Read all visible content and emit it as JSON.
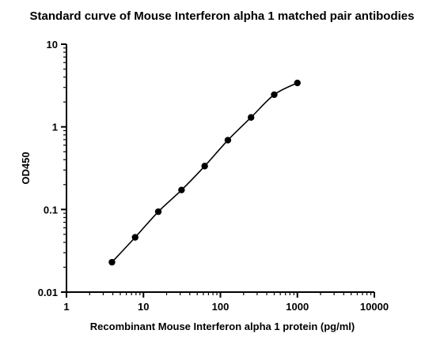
{
  "chart_data": {
    "type": "scatter",
    "title": "Standard curve of Mouse Interferon alpha 1 matched pair antibodies",
    "xlabel": "Recombinant Mouse Interferon alpha 1 protein (pg/ml)",
    "ylabel": "OD450",
    "xscale": "log",
    "yscale": "log",
    "xlim": [
      1,
      10000
    ],
    "ylim": [
      0.01,
      10
    ],
    "xticks": [
      "1",
      "10",
      "100",
      "1000",
      "10000"
    ],
    "yticks": [
      "0.01",
      "0.1",
      "1",
      "10"
    ],
    "grid": false,
    "legend": "none",
    "fit_line": true,
    "x": [
      3.9,
      7.8,
      15.6,
      31.25,
      62.5,
      125,
      250,
      500,
      1000
    ],
    "y": [
      0.023,
      0.046,
      0.094,
      0.172,
      0.335,
      0.69,
      1.3,
      2.45,
      3.4
    ],
    "marker_color": "#000000"
  }
}
